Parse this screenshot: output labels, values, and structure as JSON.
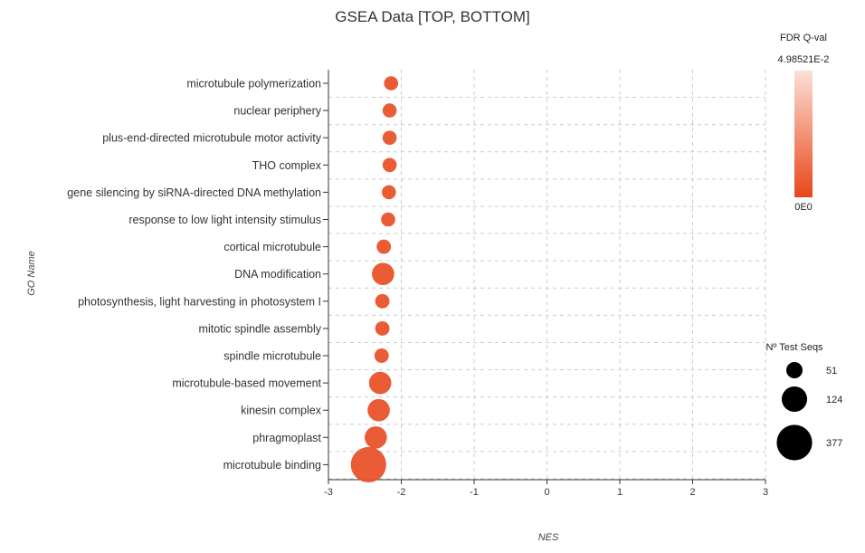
{
  "chart_data": {
    "type": "scatter",
    "title": "GSEA Data [TOP, BOTTOM]",
    "xlabel": "NES",
    "ylabel": "GO Name",
    "xlim": [
      -3,
      3
    ],
    "xticks": [
      "-3",
      "-2",
      "-1",
      "0",
      "1",
      "2",
      "3"
    ],
    "grid": true,
    "categories": [
      "microtubule polymerization",
      "nuclear periphery",
      "plus-end-directed microtubule motor activity",
      "THO complex",
      "gene silencing by siRNA-directed DNA methylation",
      "response to low light intensity stimulus",
      "cortical microtubule",
      "DNA modification",
      "photosynthesis, light harvesting in photosystem I",
      "mitotic spindle assembly",
      "spindle microtubule",
      "microtubule-based movement",
      "kinesin complex",
      "phragmoplast",
      "microtubule binding"
    ],
    "series": [
      {
        "nes": [
          -2.14,
          -2.16,
          -2.16,
          -2.16,
          -2.17,
          -2.18,
          -2.24,
          -2.25,
          -2.26,
          -2.26,
          -2.27,
          -2.29,
          -2.31,
          -2.35,
          -2.45
        ],
        "n_test_seqs": [
          60,
          60,
          60,
          60,
          60,
          60,
          62,
          150,
          62,
          62,
          62,
          150,
          150,
          150,
          377
        ],
        "fdr_q": [
          0,
          0,
          0,
          0,
          0,
          0,
          0,
          0,
          0,
          0,
          0,
          0,
          0,
          0,
          0
        ]
      }
    ],
    "color_legend": {
      "title": "FDR Q-val",
      "max_label": "4.98521E-2",
      "min_label": "0E0",
      "color_max": "#fde0d6",
      "color_min": "#e8461a"
    },
    "size_legend": {
      "title": "Nº Test Seqs",
      "entries": [
        51,
        124,
        377
      ]
    },
    "marker_color": "#e8532b",
    "grid_color": "#cccccc"
  }
}
